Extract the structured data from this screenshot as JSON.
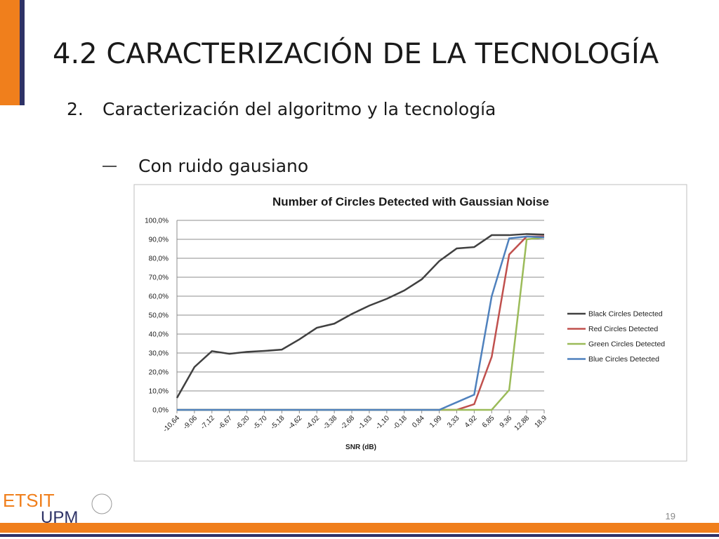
{
  "slide_title": "4.2   CARACTERIZACIÓN DE LA TECNOLOGÍA",
  "bullet": {
    "number": "2.",
    "text": "Caracterización del algoritmo y la tecnología"
  },
  "sub_bullet": "Con ruido gausiano",
  "footer": {
    "logo_top": "ETSIT",
    "logo_bottom": "UPM",
    "page_number": "19"
  },
  "chart_data": {
    "type": "line",
    "title": "Number of Circles Detected with Gaussian Noise",
    "x_label": "SNR (dB)",
    "categories": [
      "-10,64",
      "-9,06",
      "-7,12",
      "-6,67",
      "-6,20",
      "-5,70",
      "-5,18",
      "-4,62",
      "-4,02",
      "-3,38",
      "-2,68",
      "-1,93",
      "-1,10",
      "-0,18",
      "0,84",
      "1,99",
      "3,33",
      "4,92",
      "6,85",
      "9,36",
      "12,88",
      "18,9"
    ],
    "series": [
      {
        "name": "Black Circles Detected",
        "color": "#404040",
        "values": [
          6.3,
          22.6,
          31,
          29.6,
          30.6,
          31.1,
          31.8,
          37.2,
          43.3,
          45.5,
          50.6,
          55,
          58.6,
          63,
          68.9,
          78.5,
          85.2,
          85.9,
          92.2,
          92.2,
          92.8,
          92.5
        ]
      },
      {
        "name": "Red Circles Detected",
        "color": "#c0504d",
        "values": [
          0,
          0,
          0,
          0,
          0,
          0,
          0,
          0,
          0,
          0,
          0,
          0,
          0,
          0,
          0,
          0,
          0,
          3,
          28,
          82,
          91.5,
          91.5
        ]
      },
      {
        "name": "Green Circles Detected",
        "color": "#9bbb59",
        "values": [
          0,
          0,
          0,
          0,
          0,
          0,
          0,
          0,
          0,
          0,
          0,
          0,
          0,
          0,
          0,
          0,
          0,
          0,
          0,
          10.5,
          90,
          91
        ]
      },
      {
        "name": "Blue Circles Detected",
        "color": "#4f81bd",
        "values": [
          0,
          0,
          0,
          0,
          0,
          0,
          0,
          0,
          0,
          0,
          0,
          0,
          0,
          0,
          0,
          0,
          4,
          8,
          60,
          90.5,
          91.5,
          91
        ]
      }
    ],
    "ylim": [
      0,
      100
    ],
    "yticks": [
      {
        "value": 0,
        "label": "0,0%"
      },
      {
        "value": 10,
        "label": "10,0%"
      },
      {
        "value": 20,
        "label": "20,0%"
      },
      {
        "value": 30,
        "label": "30,0%"
      },
      {
        "value": 40,
        "label": "40,0%"
      },
      {
        "value": 50,
        "label": "50,0%"
      },
      {
        "value": 60,
        "label": "60,0%"
      },
      {
        "value": 70,
        "label": "70,0%"
      },
      {
        "value": 80,
        "label": "80,0%"
      },
      {
        "value": 90,
        "label": "90,0%"
      },
      {
        "value": 100,
        "label": "100,0%"
      }
    ],
    "grid": true,
    "legend": "right"
  }
}
